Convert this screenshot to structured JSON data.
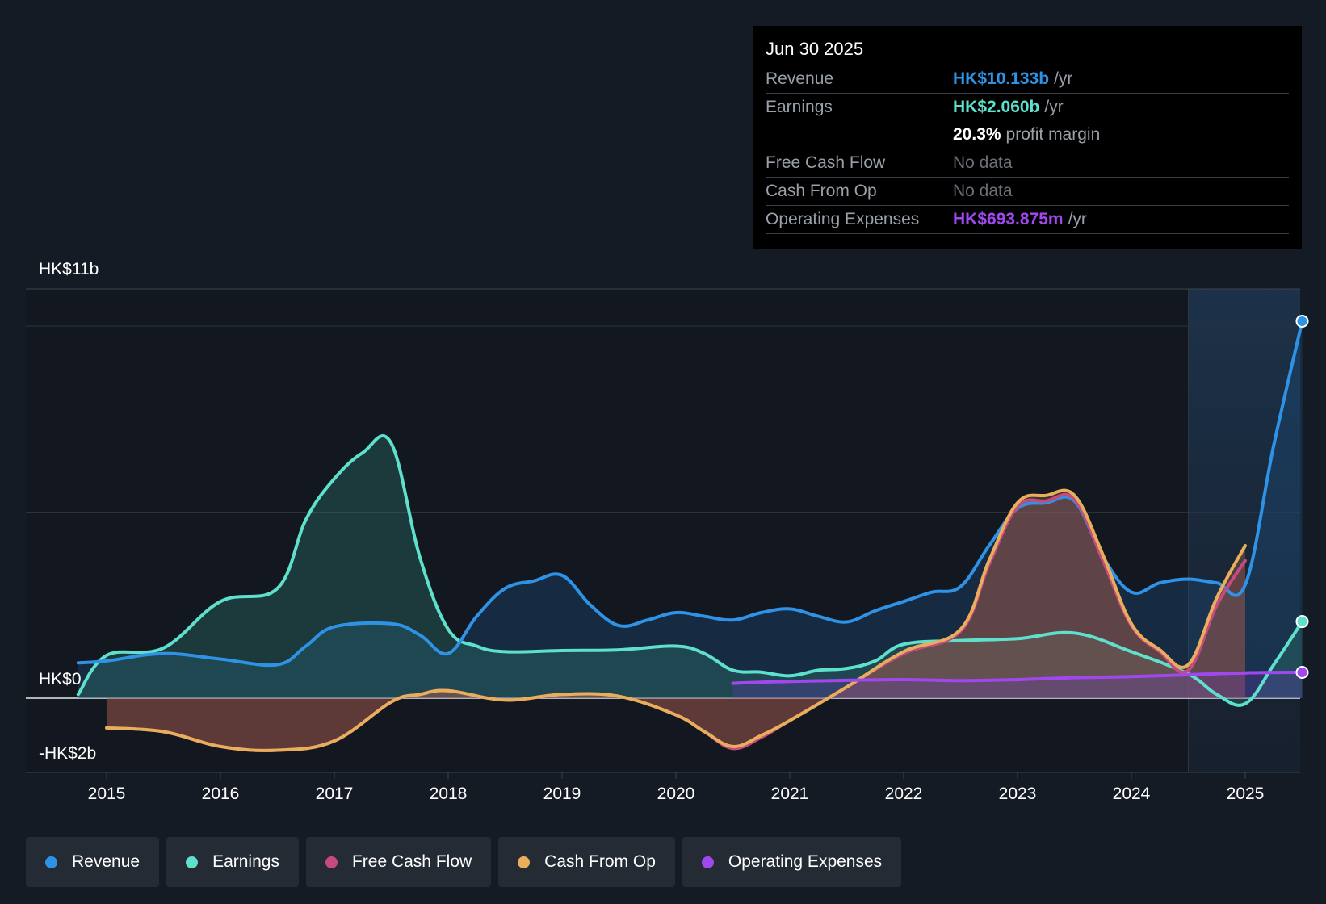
{
  "tooltip": {
    "date": "Jun 30 2025",
    "rows": [
      {
        "label": "Revenue",
        "value": "HK$10.133b",
        "suffix": "/yr",
        "color": "#2e93e6"
      },
      {
        "label": "Earnings",
        "value": "HK$2.060b",
        "suffix": "/yr",
        "color": "#5ee0cc"
      },
      {
        "label": "",
        "value": "20.3%",
        "suffix": "profit margin",
        "color": "#ffffff"
      },
      {
        "label": "Free Cash Flow",
        "value": "No data",
        "suffix": "",
        "color": "#6b7079"
      },
      {
        "label": "Cash From Op",
        "value": "No data",
        "suffix": "",
        "color": "#6b7079"
      },
      {
        "label": "Operating Expenses",
        "value": "HK$693.875m",
        "suffix": "/yr",
        "color": "#a048ee"
      }
    ]
  },
  "legend": [
    {
      "label": "Revenue",
      "color": "#2e93e6"
    },
    {
      "label": "Earnings",
      "color": "#5ee0cc"
    },
    {
      "label": "Free Cash Flow",
      "color": "#c64a7d"
    },
    {
      "label": "Cash From Op",
      "color": "#e8ae5c"
    },
    {
      "label": "Operating Expenses",
      "color": "#a048ee"
    }
  ],
  "chart_data": {
    "type": "area",
    "title": "",
    "ylim": [
      -2,
      11
    ],
    "y_labels": {
      "top": "HK$11b",
      "zero": "HK$0",
      "bottom": "-HK$2b"
    },
    "x_ticks": [
      "2015",
      "2016",
      "2017",
      "2018",
      "2019",
      "2020",
      "2021",
      "2022",
      "2023",
      "2024",
      "2025"
    ],
    "forecast_start": 2024.5,
    "grid": true,
    "series": [
      {
        "name": "Revenue",
        "color": "#2e93e6",
        "x": [
          2014.75,
          2015.0,
          2015.5,
          2016.0,
          2016.5,
          2016.75,
          2017.0,
          2017.5,
          2017.75,
          2018.0,
          2018.25,
          2018.5,
          2018.75,
          2019.0,
          2019.25,
          2019.5,
          2019.75,
          2020.0,
          2020.25,
          2020.5,
          2020.75,
          2021.0,
          2021.25,
          2021.5,
          2021.75,
          2022.0,
          2022.25,
          2022.5,
          2022.75,
          2023.0,
          2023.25,
          2023.5,
          2023.75,
          2024.0,
          2024.25,
          2024.5,
          2024.75,
          2025.0,
          2025.25,
          2025.5
        ],
        "values": [
          0.95,
          1.0,
          1.2,
          1.05,
          0.9,
          1.4,
          1.92,
          2.0,
          1.7,
          1.2,
          2.2,
          2.95,
          3.15,
          3.3,
          2.5,
          1.95,
          2.1,
          2.3,
          2.2,
          2.1,
          2.3,
          2.4,
          2.2,
          2.05,
          2.35,
          2.6,
          2.85,
          3.0,
          4.1,
          5.1,
          5.25,
          5.3,
          3.8,
          2.85,
          3.1,
          3.2,
          3.1,
          3.05,
          6.8,
          10.133
        ]
      },
      {
        "name": "Earnings",
        "color": "#5ee0cc",
        "x": [
          2014.75,
          2015.0,
          2015.5,
          2016.0,
          2016.5,
          2016.75,
          2017.0,
          2017.25,
          2017.5,
          2017.75,
          2018.0,
          2018.25,
          2018.5,
          2019.0,
          2019.5,
          2020.0,
          2020.25,
          2020.5,
          2020.75,
          2021.0,
          2021.25,
          2021.5,
          2021.75,
          2022.0,
          2022.5,
          2023.0,
          2023.5,
          2024.0,
          2024.5,
          2024.75,
          2025.0,
          2025.25,
          2025.5
        ],
        "values": [
          0.1,
          1.15,
          1.35,
          2.6,
          2.95,
          4.8,
          5.9,
          6.6,
          6.85,
          3.8,
          1.85,
          1.4,
          1.25,
          1.28,
          1.3,
          1.4,
          1.2,
          0.75,
          0.7,
          0.6,
          0.75,
          0.8,
          1.0,
          1.45,
          1.55,
          1.6,
          1.75,
          1.25,
          0.65,
          0.1,
          -0.15,
          0.9,
          2.06
        ]
      },
      {
        "name": "Free Cash Flow",
        "color": "#c64a7d",
        "x": [
          2015.0,
          2015.5,
          2016.0,
          2016.5,
          2017.0,
          2017.5,
          2017.75,
          2018.0,
          2018.5,
          2019.0,
          2019.5,
          2020.0,
          2020.25,
          2020.5,
          2020.75,
          2021.0,
          2021.5,
          2022.0,
          2022.5,
          2022.75,
          2023.0,
          2023.25,
          2023.5,
          2023.75,
          2024.0,
          2024.25,
          2024.5,
          2024.75,
          2025.0
        ],
        "values": [
          -0.8,
          -0.9,
          -1.3,
          -1.4,
          -1.15,
          -0.1,
          0.1,
          0.2,
          -0.05,
          0.1,
          0.05,
          -0.45,
          -0.9,
          -1.35,
          -1.05,
          -0.6,
          0.3,
          1.2,
          1.8,
          3.6,
          5.15,
          5.3,
          5.35,
          3.7,
          1.95,
          1.25,
          0.75,
          2.5,
          3.7
        ]
      },
      {
        "name": "Cash From Op",
        "color": "#e8ae5c",
        "x": [
          2015.0,
          2015.5,
          2016.0,
          2016.5,
          2017.0,
          2017.5,
          2017.75,
          2018.0,
          2018.5,
          2019.0,
          2019.5,
          2020.0,
          2020.25,
          2020.5,
          2020.75,
          2021.0,
          2021.5,
          2022.0,
          2022.5,
          2022.75,
          2023.0,
          2023.25,
          2023.5,
          2023.75,
          2024.0,
          2024.25,
          2024.5,
          2024.75,
          2025.0
        ],
        "values": [
          -0.8,
          -0.9,
          -1.3,
          -1.4,
          -1.15,
          -0.1,
          0.1,
          0.2,
          -0.05,
          0.1,
          0.05,
          -0.45,
          -0.9,
          -1.3,
          -1.0,
          -0.6,
          0.3,
          1.25,
          1.85,
          3.7,
          5.25,
          5.45,
          5.45,
          3.85,
          2.0,
          1.3,
          0.9,
          2.7,
          4.1
        ]
      },
      {
        "name": "Operating Expenses",
        "color": "#a048ee",
        "x": [
          2020.5,
          2021.0,
          2021.5,
          2022.0,
          2022.5,
          2023.0,
          2023.5,
          2024.0,
          2024.5,
          2025.0,
          2025.5
        ],
        "values": [
          0.4,
          0.45,
          0.48,
          0.5,
          0.47,
          0.5,
          0.55,
          0.58,
          0.63,
          0.68,
          0.694
        ]
      }
    ]
  }
}
